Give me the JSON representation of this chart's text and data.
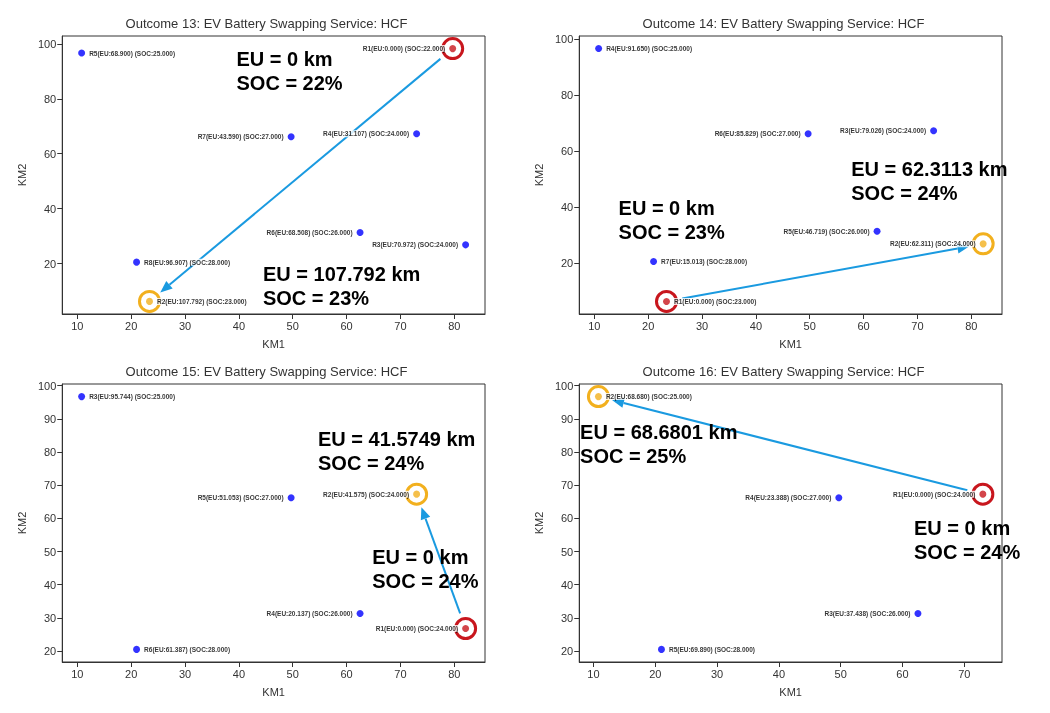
{
  "chart_data": [
    {
      "type": "scatter",
      "title": "Outcome 13: EV Battery Swapping Service: HCF",
      "xlabel": "KM1",
      "ylabel": "KM2",
      "marker": "circle",
      "xlim": [
        7.2,
        85.7
      ],
      "ylim": [
        1.6,
        102.9
      ],
      "xticks": [
        10,
        20,
        30,
        40,
        50,
        60,
        70,
        80
      ],
      "yticks": [
        20,
        40,
        60,
        80,
        100
      ],
      "series": [
        {
          "color": "#0000ff",
          "x": [
            10.8,
            49.7,
            73.0,
            62.5,
            82.1,
            21.0
          ],
          "values": [
            96.7,
            66.2,
            67.3,
            31.3,
            26.8,
            20.5
          ],
          "value_labels": [
            "R5(EU:68.900) (SOC:25.000)",
            "R7(EU:43.590) (SOC:27.000)",
            "R4(EU:31.107) (SOC:24.000)",
            "R6(EU:68.508) (SOC:26.000)",
            "R3(EU:70.972) (SOC:24.000)",
            "R8(EU:96.907) (SOC:28.000)"
          ]
        },
        {
          "color": "#c8161d",
          "x": [
            79.7
          ],
          "values": [
            98.3
          ],
          "value_labels": [
            "R1(EU:0.000) (SOC:22.000)"
          ]
        },
        {
          "color": "#f2b01e",
          "x": [
            23.4
          ],
          "values": [
            6.2
          ],
          "value_labels": [
            "R2(EU:107.792) (SOC:23.000)"
          ]
        }
      ],
      "annotations": [
        "EU = 0 km\nSOC = 22%",
        "EU = 107.792 km\nSOC = 23%"
      ]
    },
    {
      "type": "scatter",
      "title": "Outcome 14: EV Battery Swapping Service: HCF",
      "xlabel": "KM1",
      "ylabel": "KM2",
      "marker": "circle",
      "xlim": [
        7.2,
        85.7
      ],
      "ylim": [
        1.7,
        101.2
      ],
      "xticks": [
        10,
        20,
        30,
        40,
        50,
        60,
        70,
        80
      ],
      "yticks": [
        20,
        40,
        60,
        80,
        100
      ],
      "series": [
        {
          "color": "#0000ff",
          "x": [
            10.8,
            49.7,
            73.0,
            62.5,
            21.0
          ],
          "values": [
            96.7,
            66.2,
            67.3,
            31.3,
            20.5
          ],
          "value_labels": [
            "R4(EU:91.650) (SOC:25.000)",
            "R6(EU:85.829) (SOC:27.000)",
            "R3(EU:79.026) (SOC:24.000)",
            "R5(EU:46.719) (SOC:26.000)",
            "R7(EU:15.013) (SOC:28.000)"
          ]
        },
        {
          "color": "#c8161d",
          "x": [
            23.4
          ],
          "values": [
            6.2
          ],
          "value_labels": [
            "R1(EU:0.000) (SOC:23.000)"
          ]
        },
        {
          "color": "#f2b01e",
          "x": [
            82.2
          ],
          "values": [
            26.8
          ],
          "value_labels": [
            "R2(EU:62.311) (SOC:24.000)"
          ]
        }
      ],
      "annotations": [
        "EU = 0 km\nSOC = 23%",
        "EU = 62.3113 km\nSOC = 24%"
      ]
    },
    {
      "type": "scatter",
      "title": "Outcome 15: EV Battery Swapping Service: HCF",
      "xlabel": "KM1",
      "ylabel": "KM2",
      "marker": "circle",
      "xlim": [
        7.2,
        85.7
      ],
      "ylim": [
        16.7,
        100.5
      ],
      "xticks": [
        10,
        20,
        30,
        40,
        50,
        60,
        70,
        80
      ],
      "yticks": [
        20,
        30,
        40,
        50,
        60,
        70,
        80,
        90,
        100
      ],
      "series": [
        {
          "color": "#0000ff",
          "x": [
            10.8,
            49.7,
            62.5,
            21.0
          ],
          "values": [
            96.7,
            66.2,
            31.3,
            20.5
          ],
          "value_labels": [
            "R3(EU:95.744) (SOC:25.000)",
            "R5(EU:51.053) (SOC:27.000)",
            "R4(EU:20.137) (SOC:26.000)",
            "R6(EU:61.387) (SOC:28.000)"
          ]
        },
        {
          "color": "#c8161d",
          "x": [
            82.1
          ],
          "values": [
            26.8
          ],
          "value_labels": [
            "R1(EU:0.000) (SOC:24.000)"
          ]
        },
        {
          "color": "#f2b01e",
          "x": [
            73.0
          ],
          "values": [
            67.3
          ],
          "value_labels": [
            "R2(EU:41.575) (SOC:24.000)"
          ]
        }
      ],
      "annotations": [
        "EU = 41.5749 km\nSOC = 24%",
        "EU = 0 km\nSOC = 24%"
      ]
    },
    {
      "type": "scatter",
      "title": "Outcome 16: EV Battery Swapping Service: HCF",
      "xlabel": "KM1",
      "ylabel": "KM2",
      "marker": "circle",
      "xlim": [
        7.7,
        76.1
      ],
      "ylim": [
        16.7,
        100.5
      ],
      "xticks": [
        10,
        20,
        30,
        40,
        50,
        60,
        70
      ],
      "yticks": [
        20,
        30,
        40,
        50,
        60,
        70,
        80,
        90,
        100
      ],
      "series": [
        {
          "color": "#0000ff",
          "x": [
            49.7,
            62.5,
            21.0
          ],
          "values": [
            66.2,
            31.3,
            20.5
          ],
          "value_labels": [
            "R4(EU:23.388) (SOC:27.000)",
            "R3(EU:37.438) (SOC:26.000)",
            "R5(EU:69.890) (SOC:28.000)"
          ]
        },
        {
          "color": "#c8161d",
          "x": [
            73.0
          ],
          "values": [
            67.3
          ],
          "value_labels": [
            "R1(EU:0.000) (SOC:24.000)"
          ]
        },
        {
          "color": "#f2b01e",
          "x": [
            10.8
          ],
          "values": [
            96.7
          ],
          "value_labels": [
            "R2(EU:68.680) (SOC:25.000)"
          ]
        }
      ],
      "annotations": [
        "EU = 68.6801 km\nSOC = 25%",
        "EU = 0 km\nSOC = 24%"
      ]
    }
  ]
}
